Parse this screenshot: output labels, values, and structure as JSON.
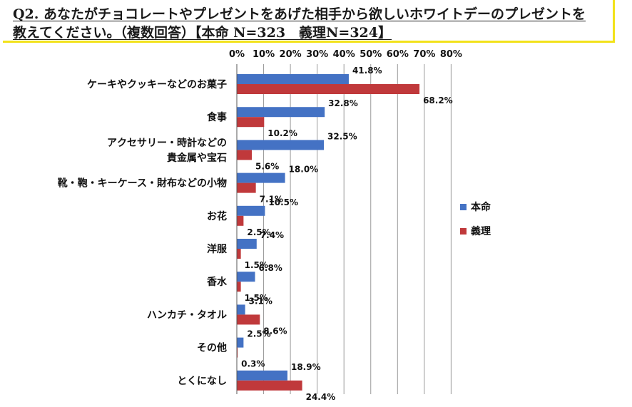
{
  "header": {
    "line1": "Q2. あなたがチョコレートやプレゼントをあげた相手から欲しいホワイトデーのプレゼントを",
    "line2": "教えてください。（複数回答）【本命 N=323　義理N=324】"
  },
  "chart_data": {
    "type": "bar",
    "orientation": "horizontal",
    "title": "Q2. あなたがチョコレートやプレゼントをあげた相手から欲しいホワイトデーのプレゼントを教えてください。（複数回答）【本命 N=323　義理N=324】",
    "categories": [
      [
        "ケーキやクッキーなどのお菓子"
      ],
      [
        "食事"
      ],
      [
        "アクセサリー・時計などの",
        "貴金属や宝石"
      ],
      [
        "靴・鞄・キーケース・財布などの小物"
      ],
      [
        "お花"
      ],
      [
        "洋服"
      ],
      [
        "香水"
      ],
      [
        "ハンカチ・タオル"
      ],
      [
        "その他"
      ],
      [
        "とくになし"
      ]
    ],
    "series": [
      {
        "name": "本命",
        "color": "#4472c4",
        "values": [
          41.8,
          32.8,
          32.5,
          18.0,
          10.5,
          7.4,
          6.8,
          3.1,
          2.5,
          18.9
        ],
        "labels": [
          "41.8%",
          "32.8%",
          "32.5%",
          "18.0%",
          "10.5%",
          "7.4%",
          "6.8%",
          "3.1%",
          "2.5%",
          "18.9%"
        ]
      },
      {
        "name": "義理",
        "color": "#c0393b",
        "values": [
          68.2,
          10.2,
          5.6,
          7.1,
          2.5,
          1.5,
          1.5,
          8.6,
          0.3,
          24.4
        ],
        "labels": [
          "68.2%",
          "10.2%",
          "5.6%",
          "7.1%",
          "2.5%",
          "1.5%",
          "1.5%",
          "8.6%",
          "0.3%",
          "24.4%"
        ]
      }
    ],
    "xlim": [
      0,
      80
    ],
    "ticks": [
      0,
      10,
      20,
      30,
      40,
      50,
      60,
      70,
      80
    ],
    "tick_labels": [
      "0%",
      "10%",
      "20%",
      "30%",
      "40%",
      "50%",
      "60%",
      "70%",
      "80%"
    ],
    "grid": true,
    "legend_position": "right"
  }
}
